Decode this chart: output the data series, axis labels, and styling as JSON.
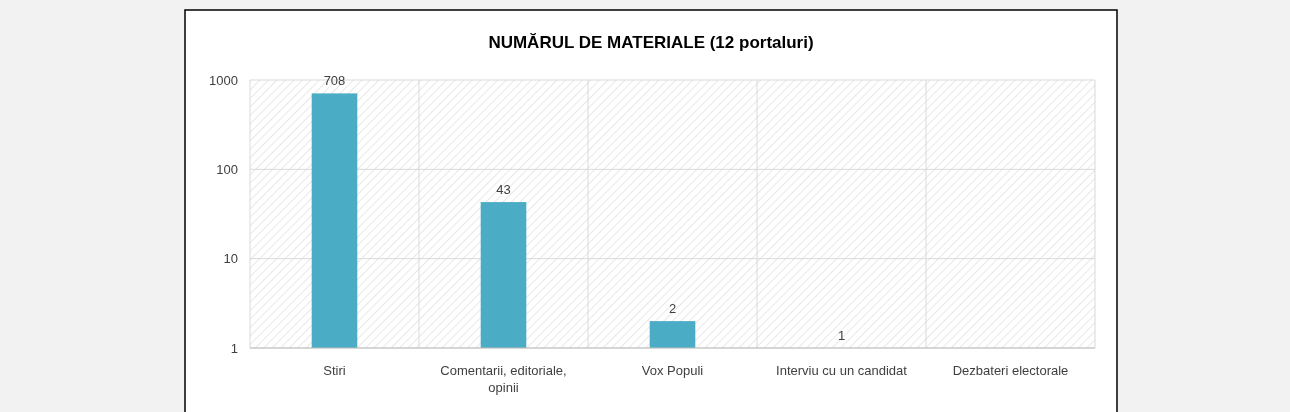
{
  "chart_data": {
    "type": "bar",
    "title": "NUMĂRUL DE MATERIALE (12 portaluri)",
    "categories": [
      "Stiri",
      "Comentarii, editoriale, opinii",
      "Vox Populi",
      "Interviu cu un candidat",
      "Dezbateri electorale"
    ],
    "values": [
      708,
      43,
      2,
      1,
      null
    ],
    "color": "#4bacc6",
    "log": true,
    "ylim": [
      1,
      1000
    ],
    "yticks": [
      1,
      10,
      100,
      1000
    ],
    "grid": true,
    "data_labels": true
  }
}
